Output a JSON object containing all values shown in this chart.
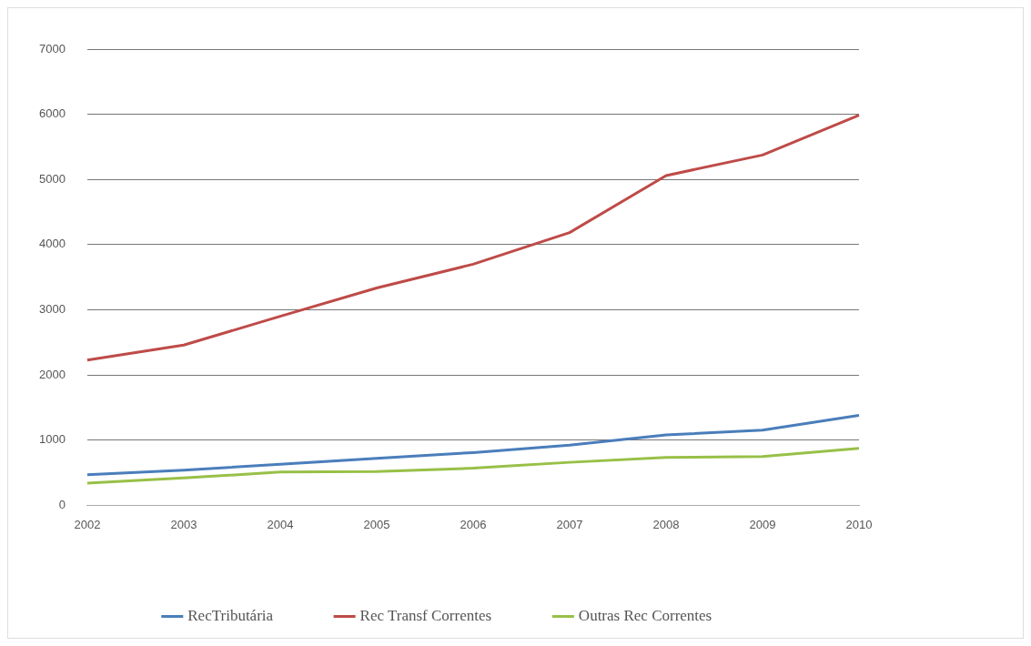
{
  "chart_data": {
    "type": "line",
    "categories": [
      "2002",
      "2003",
      "2004",
      "2005",
      "2006",
      "2007",
      "2008",
      "2009",
      "2010"
    ],
    "series": [
      {
        "name": "RecTributária",
        "color": "#4a7ebb",
        "values": [
          470,
          540,
          630,
          720,
          810,
          925,
          1080,
          1155,
          1380
        ]
      },
      {
        "name": "Rec Transf Correntes",
        "color": "#be4b48",
        "values": [
          2230,
          2460,
          2900,
          3335,
          3700,
          4185,
          5060,
          5375,
          5985
        ]
      },
      {
        "name": "Outras Rec Correntes",
        "color": "#98c047",
        "values": [
          340,
          420,
          510,
          520,
          570,
          660,
          735,
          750,
          875
        ]
      }
    ],
    "ylim": [
      0,
      7000
    ],
    "yticks": [
      0,
      1000,
      2000,
      3000,
      4000,
      5000,
      6000,
      7000
    ],
    "grid": "y",
    "legend": "bottom",
    "marker": "none",
    "line_style": "solid"
  }
}
